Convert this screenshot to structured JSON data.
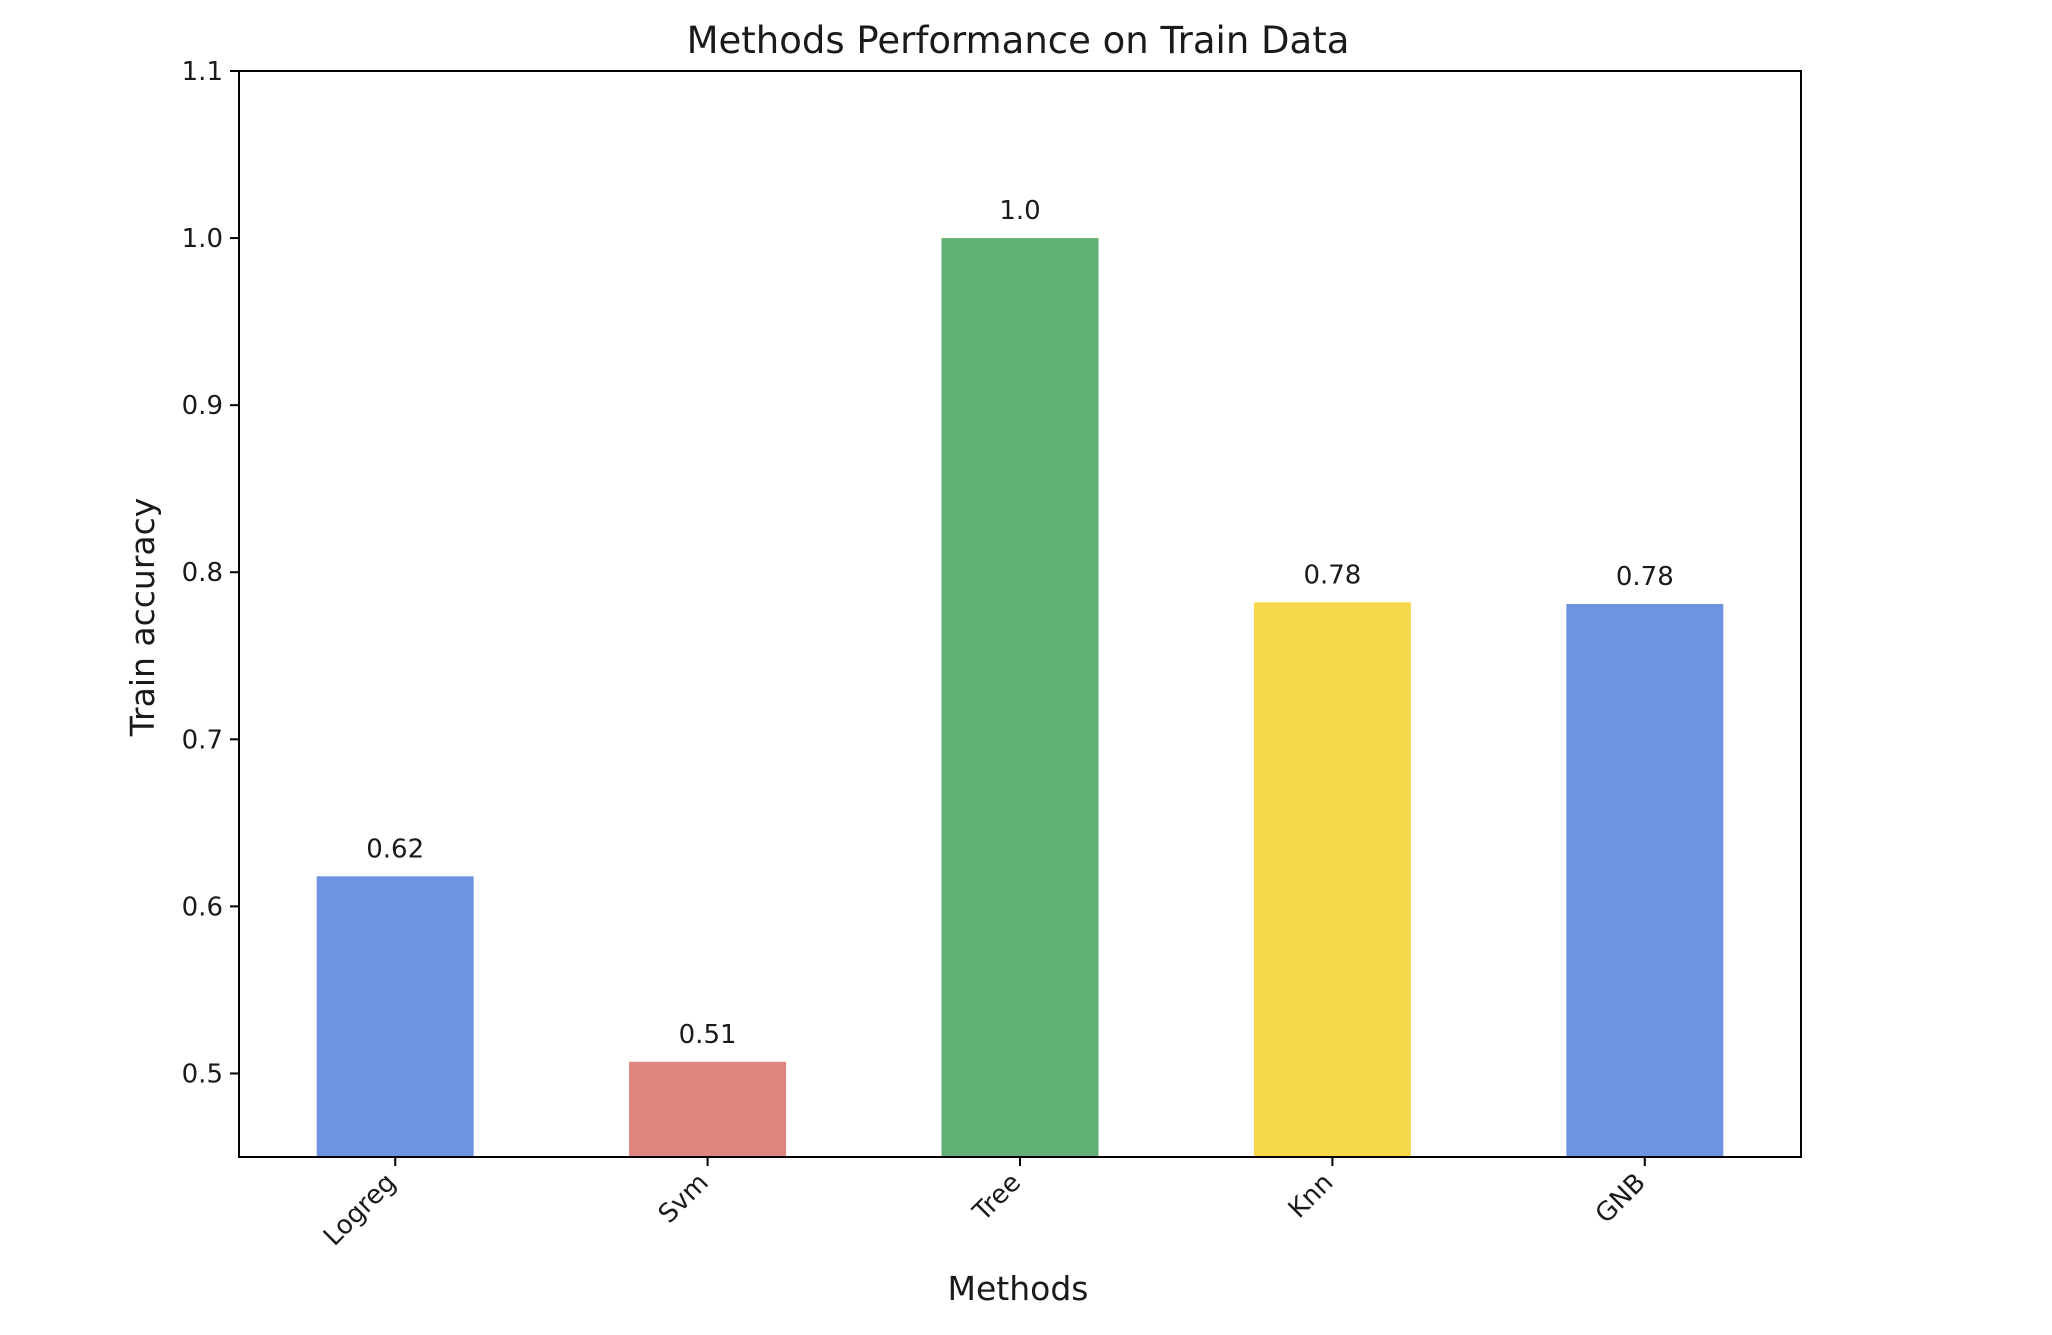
{
  "chart_data": {
    "type": "bar",
    "title": "Methods Performance on Train Data",
    "xlabel": "Methods",
    "ylabel": "Train accuracy",
    "categories": [
      "Logreg",
      "Svm",
      "Tree",
      "Knn",
      "GNB"
    ],
    "values": [
      0.618,
      0.507,
      1.0,
      0.782,
      0.781
    ],
    "value_labels": [
      "0.62",
      "0.51",
      "1.0",
      "0.78",
      "0.78"
    ],
    "colors": [
      "#6e93e3",
      "#e0857f",
      "#60b076",
      "#f7d84c",
      "#6e93e3"
    ],
    "ylim": [
      0.45,
      1.1
    ],
    "yticks": [
      0.5,
      0.6,
      0.7,
      0.8,
      0.9,
      1.0,
      1.1
    ],
    "ytick_labels": [
      "0.5",
      "0.6",
      "0.7",
      "0.8",
      "0.9",
      "1.0",
      "1.1"
    ],
    "grid": false,
    "xtick_rotation_deg": 45
  }
}
